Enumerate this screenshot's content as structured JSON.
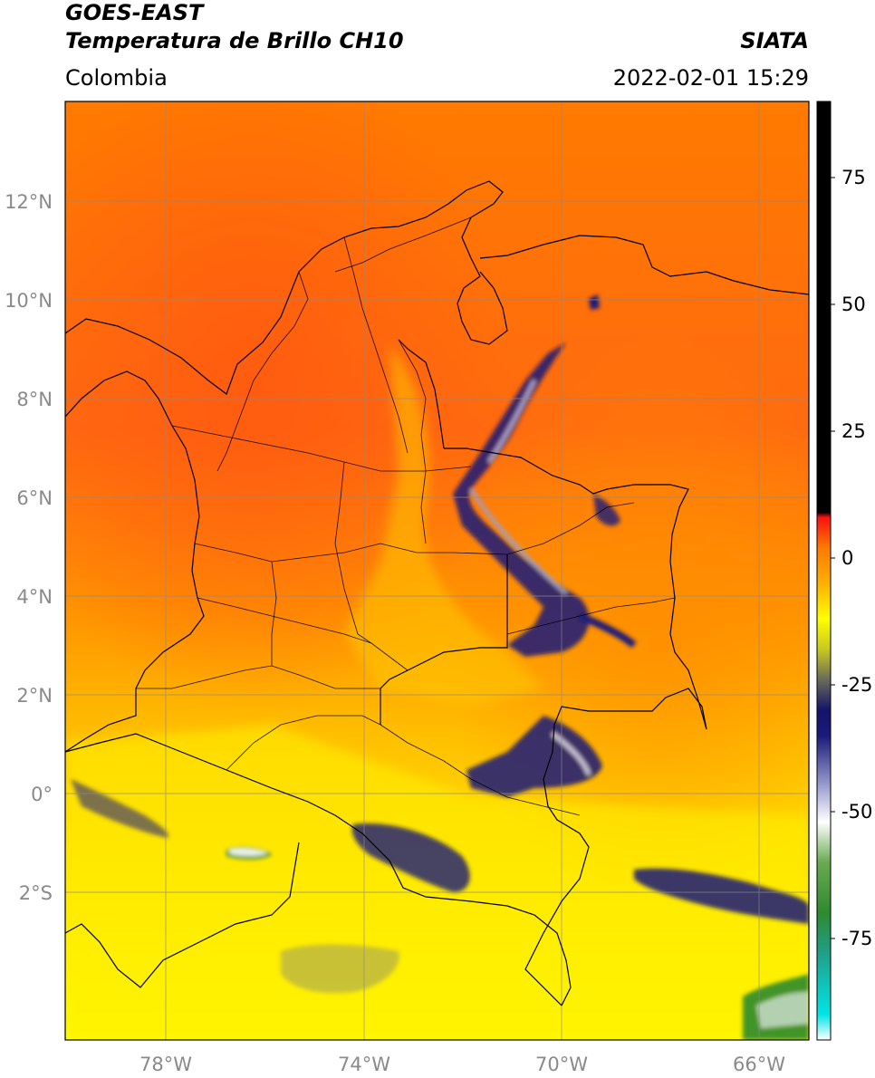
{
  "header": {
    "satellite": "GOES-EAST",
    "product": "Temperatura de Brillo CH10",
    "organization": "SIATA",
    "region": "Colombia",
    "datetime": "2022-02-01 15:29"
  },
  "map": {
    "lon_range": [
      -80,
      -65
    ],
    "lat_range": [
      -5,
      14
    ],
    "lat_ticks": [
      {
        "value": 12,
        "label": "12°N"
      },
      {
        "value": 10,
        "label": "10°N"
      },
      {
        "value": 8,
        "label": "8°N"
      },
      {
        "value": 6,
        "label": "6°N"
      },
      {
        "value": 4,
        "label": "4°N"
      },
      {
        "value": 2,
        "label": "2°N"
      },
      {
        "value": 0,
        "label": "0°"
      },
      {
        "value": -2,
        "label": "2°S"
      }
    ],
    "lon_ticks": [
      {
        "value": -78,
        "label": "78°W"
      },
      {
        "value": -74,
        "label": "74°W"
      },
      {
        "value": -70,
        "label": "70°W"
      },
      {
        "value": -66,
        "label": "66°W"
      }
    ],
    "grid": true
  },
  "colorbar": {
    "range": [
      -95,
      90
    ],
    "ticks": [
      {
        "value": 75,
        "label": "75"
      },
      {
        "value": 50,
        "label": "50"
      },
      {
        "value": 25,
        "label": "25"
      },
      {
        "value": 0,
        "label": "0"
      },
      {
        "value": -25,
        "label": "-25"
      },
      {
        "value": -50,
        "label": "-50"
      },
      {
        "value": -75,
        "label": "-75"
      }
    ],
    "stops": [
      {
        "value": -95,
        "color": "#ffffff"
      },
      {
        "value": -90,
        "color": "#00e5e5"
      },
      {
        "value": -78,
        "color": "#1fa08a"
      },
      {
        "value": -70,
        "color": "#2e8a2e"
      },
      {
        "value": -60,
        "color": "#6aaa50"
      },
      {
        "value": -52,
        "color": "#ffffff"
      },
      {
        "value": -45,
        "color": "#9aa0d0"
      },
      {
        "value": -35,
        "color": "#1a1a7a"
      },
      {
        "value": -30,
        "color": "#14146a"
      },
      {
        "value": -24,
        "color": "#6a6a5a"
      },
      {
        "value": -18,
        "color": "#c8c820"
      },
      {
        "value": -12,
        "color": "#ffff00"
      },
      {
        "value": -5,
        "color": "#ffb000"
      },
      {
        "value": 2,
        "color": "#ff7a00"
      },
      {
        "value": 8,
        "color": "#ff1010"
      },
      {
        "value": 9,
        "color": "#000000"
      },
      {
        "value": 90,
        "color": "#000000"
      }
    ]
  }
}
